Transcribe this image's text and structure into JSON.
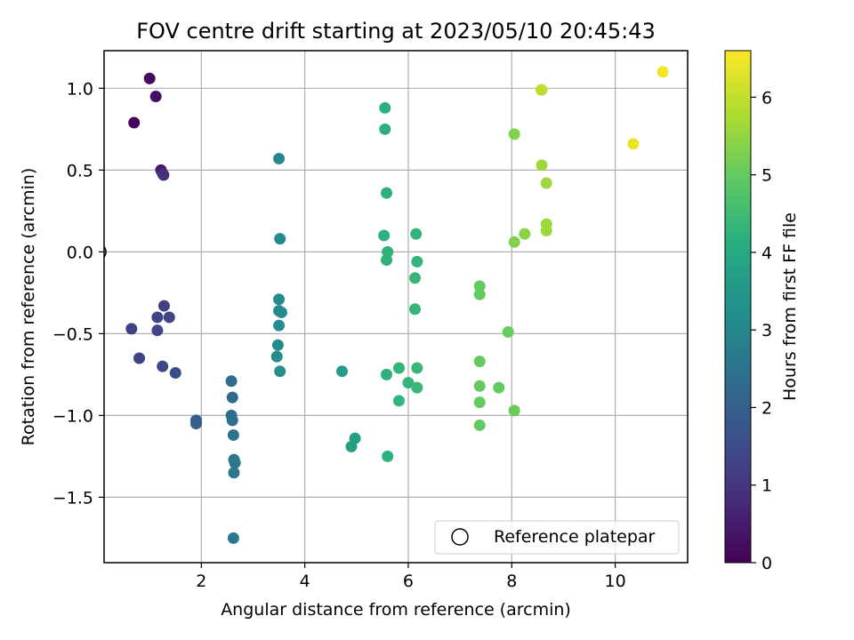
{
  "chart_data": {
    "type": "scatter",
    "title": "FOV centre drift starting at 2023/05/10 20:45:43",
    "xlabel": "Angular distance from reference (arcmin)",
    "ylabel": "Rotation from reference (arcmin)",
    "xlim": [
      0.12,
      11.4
    ],
    "ylim": [
      -1.9,
      1.23
    ],
    "x_ticks": [
      2,
      4,
      6,
      8,
      10
    ],
    "x_tick_labels": [
      "2",
      "4",
      "6",
      "8",
      "10"
    ],
    "y_ticks": [
      -1.5,
      -1.0,
      -0.5,
      0.0,
      0.5,
      1.0
    ],
    "y_tick_labels": [
      "−1.5",
      "−1.0",
      "−0.5",
      "0.0",
      "0.5",
      "1.0"
    ],
    "grid": true,
    "legend": {
      "position": "lower-right",
      "entries": [
        "Reference platepar"
      ]
    },
    "reference_point": {
      "x": 0,
      "y": 0
    },
    "colorbar": {
      "label": "Hours from first FF file",
      "colormap": "viridis",
      "range": [
        0,
        6.6
      ],
      "ticks": [
        0,
        1,
        2,
        3,
        4,
        5,
        6
      ],
      "tick_labels": [
        "0",
        "1",
        "2",
        "3",
        "4",
        "5",
        "6"
      ]
    },
    "points": [
      {
        "x": 0.7,
        "y": 0.79,
        "hours": 0.1
      },
      {
        "x": 1.0,
        "y": 1.06,
        "hours": 0.15
      },
      {
        "x": 1.12,
        "y": 0.95,
        "hours": 0.25
      },
      {
        "x": 1.22,
        "y": 0.5,
        "hours": 0.45
      },
      {
        "x": 1.25,
        "y": 0.48,
        "hours": 0.75
      },
      {
        "x": 1.27,
        "y": 0.47,
        "hours": 0.9
      },
      {
        "x": 0.65,
        "y": -0.47,
        "hours": 1.3
      },
      {
        "x": 0.8,
        "y": -0.65,
        "hours": 1.3
      },
      {
        "x": 1.15,
        "y": -0.4,
        "hours": 1.3
      },
      {
        "x": 1.28,
        "y": -0.33,
        "hours": 1.3
      },
      {
        "x": 1.38,
        "y": -0.4,
        "hours": 1.35
      },
      {
        "x": 1.15,
        "y": -0.48,
        "hours": 1.35
      },
      {
        "x": 1.25,
        "y": -0.7,
        "hours": 1.4
      },
      {
        "x": 1.5,
        "y": -0.74,
        "hours": 1.5
      },
      {
        "x": 1.9,
        "y": -1.03,
        "hours": 1.9
      },
      {
        "x": 1.9,
        "y": -1.05,
        "hours": 1.95
      },
      {
        "x": 2.58,
        "y": -0.79,
        "hours": 2.3
      },
      {
        "x": 2.6,
        "y": -0.89,
        "hours": 2.3
      },
      {
        "x": 2.58,
        "y": -1.0,
        "hours": 2.35
      },
      {
        "x": 2.6,
        "y": -1.03,
        "hours": 2.4
      },
      {
        "x": 2.62,
        "y": -1.12,
        "hours": 2.5
      },
      {
        "x": 2.63,
        "y": -1.27,
        "hours": 2.55
      },
      {
        "x": 2.65,
        "y": -1.29,
        "hours": 2.6
      },
      {
        "x": 2.63,
        "y": -1.35,
        "hours": 2.6
      },
      {
        "x": 2.62,
        "y": -1.75,
        "hours": 2.6
      },
      {
        "x": 3.5,
        "y": 0.57,
        "hours": 3.1
      },
      {
        "x": 3.52,
        "y": 0.08,
        "hours": 3.15
      },
      {
        "x": 3.5,
        "y": -0.29,
        "hours": 3.15
      },
      {
        "x": 3.5,
        "y": -0.36,
        "hours": 3.2
      },
      {
        "x": 3.55,
        "y": -0.37,
        "hours": 3.2
      },
      {
        "x": 3.5,
        "y": -0.45,
        "hours": 3.2
      },
      {
        "x": 3.48,
        "y": -0.57,
        "hours": 3.2
      },
      {
        "x": 3.46,
        "y": -0.64,
        "hours": 3.2
      },
      {
        "x": 3.52,
        "y": -0.73,
        "hours": 3.25
      },
      {
        "x": 4.72,
        "y": -0.73,
        "hours": 3.6
      },
      {
        "x": 4.97,
        "y": -1.14,
        "hours": 3.7
      },
      {
        "x": 4.9,
        "y": -1.19,
        "hours": 3.7
      },
      {
        "x": 5.55,
        "y": 0.88,
        "hours": 4.2
      },
      {
        "x": 5.55,
        "y": 0.75,
        "hours": 4.2
      },
      {
        "x": 5.58,
        "y": 0.36,
        "hours": 4.2
      },
      {
        "x": 5.53,
        "y": 0.1,
        "hours": 4.2
      },
      {
        "x": 5.6,
        "y": 0.0,
        "hours": 4.25
      },
      {
        "x": 5.58,
        "y": -0.05,
        "hours": 4.25
      },
      {
        "x": 5.58,
        "y": -0.75,
        "hours": 4.2
      },
      {
        "x": 5.6,
        "y": -1.25,
        "hours": 4.2
      },
      {
        "x": 5.82,
        "y": -0.71,
        "hours": 4.3
      },
      {
        "x": 5.82,
        "y": -0.91,
        "hours": 4.3
      },
      {
        "x": 6.0,
        "y": -0.8,
        "hours": 4.3
      },
      {
        "x": 6.15,
        "y": 0.11,
        "hours": 4.3
      },
      {
        "x": 6.17,
        "y": -0.06,
        "hours": 4.3
      },
      {
        "x": 6.13,
        "y": -0.16,
        "hours": 4.35
      },
      {
        "x": 6.13,
        "y": -0.35,
        "hours": 4.35
      },
      {
        "x": 6.17,
        "y": -0.71,
        "hours": 4.4
      },
      {
        "x": 6.17,
        "y": -0.83,
        "hours": 4.4
      },
      {
        "x": 7.38,
        "y": -0.21,
        "hours": 5.0
      },
      {
        "x": 7.38,
        "y": -0.26,
        "hours": 5.0
      },
      {
        "x": 7.38,
        "y": -0.67,
        "hours": 5.0
      },
      {
        "x": 7.38,
        "y": -0.82,
        "hours": 5.0
      },
      {
        "x": 7.38,
        "y": -0.92,
        "hours": 5.0
      },
      {
        "x": 7.38,
        "y": -1.06,
        "hours": 5.0
      },
      {
        "x": 7.75,
        "y": -0.83,
        "hours": 5.0
      },
      {
        "x": 7.93,
        "y": -0.49,
        "hours": 5.05
      },
      {
        "x": 8.05,
        "y": -0.97,
        "hours": 5.1
      },
      {
        "x": 8.05,
        "y": 0.72,
        "hours": 5.3
      },
      {
        "x": 8.05,
        "y": 0.06,
        "hours": 5.3
      },
      {
        "x": 8.25,
        "y": 0.11,
        "hours": 5.4
      },
      {
        "x": 8.58,
        "y": 0.53,
        "hours": 5.6
      },
      {
        "x": 8.67,
        "y": 0.42,
        "hours": 5.6
      },
      {
        "x": 8.67,
        "y": 0.17,
        "hours": 5.6
      },
      {
        "x": 8.67,
        "y": 0.13,
        "hours": 5.6
      },
      {
        "x": 8.57,
        "y": 0.99,
        "hours": 5.9
      },
      {
        "x": 8.58,
        "y": 0.99,
        "hours": 5.95
      },
      {
        "x": 10.35,
        "y": 0.66,
        "hours": 6.4
      },
      {
        "x": 10.92,
        "y": 1.1,
        "hours": 6.5
      }
    ]
  }
}
